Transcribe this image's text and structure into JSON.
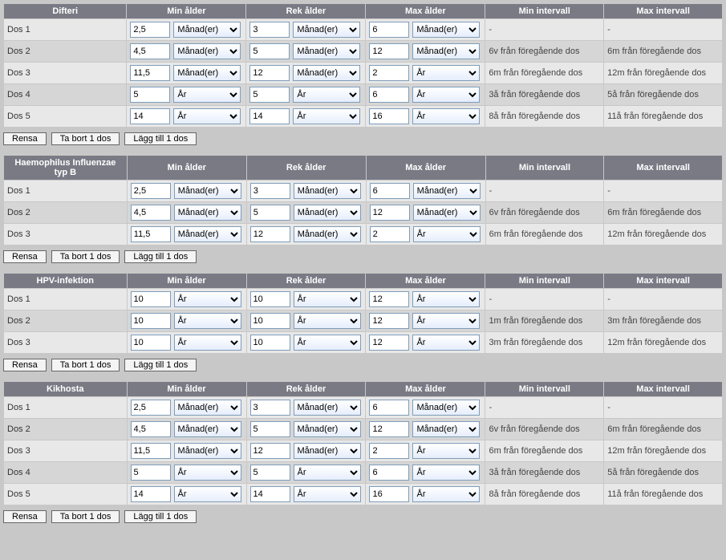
{
  "unitOptions": [
    "Månad(er)",
    "År"
  ],
  "headers": {
    "minAge": "Min ålder",
    "recAge": "Rek ålder",
    "maxAge": "Max ålder",
    "minInt": "Min intervall",
    "maxInt": "Max intervall"
  },
  "buttons": {
    "clear": "Rensa",
    "remove": "Ta bort 1 dos",
    "add": "Lägg till 1 dos"
  },
  "vaccines": [
    {
      "name": "Difteri",
      "doses": [
        {
          "label": "Dos 1",
          "min": {
            "v": "2,5",
            "u": "Månad(er)"
          },
          "rec": {
            "v": "3",
            "u": "Månad(er)"
          },
          "max": {
            "v": "6",
            "u": "Månad(er)"
          },
          "minInt": "-",
          "maxInt": "-"
        },
        {
          "label": "Dos 2",
          "min": {
            "v": "4,5",
            "u": "Månad(er)"
          },
          "rec": {
            "v": "5",
            "u": "Månad(er)"
          },
          "max": {
            "v": "12",
            "u": "Månad(er)"
          },
          "minInt": "6v från föregående dos",
          "maxInt": "6m från föregående dos"
        },
        {
          "label": "Dos 3",
          "min": {
            "v": "11,5",
            "u": "Månad(er)"
          },
          "rec": {
            "v": "12",
            "u": "Månad(er)"
          },
          "max": {
            "v": "2",
            "u": "År"
          },
          "minInt": "6m från föregående dos",
          "maxInt": "12m från föregående dos"
        },
        {
          "label": "Dos 4",
          "min": {
            "v": "5",
            "u": "År"
          },
          "rec": {
            "v": "5",
            "u": "År"
          },
          "max": {
            "v": "6",
            "u": "År"
          },
          "minInt": "3å från föregående dos",
          "maxInt": "5å från föregående dos"
        },
        {
          "label": "Dos 5",
          "min": {
            "v": "14",
            "u": "År"
          },
          "rec": {
            "v": "14",
            "u": "År"
          },
          "max": {
            "v": "16",
            "u": "År"
          },
          "minInt": "8å från föregående dos",
          "maxInt": "11å från föregående dos"
        }
      ]
    },
    {
      "name": "Haemophilus Influenzae typ B",
      "doses": [
        {
          "label": "Dos 1",
          "min": {
            "v": "2,5",
            "u": "Månad(er)"
          },
          "rec": {
            "v": "3",
            "u": "Månad(er)"
          },
          "max": {
            "v": "6",
            "u": "Månad(er)"
          },
          "minInt": "-",
          "maxInt": "-"
        },
        {
          "label": "Dos 2",
          "min": {
            "v": "4,5",
            "u": "Månad(er)"
          },
          "rec": {
            "v": "5",
            "u": "Månad(er)"
          },
          "max": {
            "v": "12",
            "u": "Månad(er)"
          },
          "minInt": "6v från föregående dos",
          "maxInt": "6m från föregående dos"
        },
        {
          "label": "Dos 3",
          "min": {
            "v": "11,5",
            "u": "Månad(er)"
          },
          "rec": {
            "v": "12",
            "u": "Månad(er)"
          },
          "max": {
            "v": "2",
            "u": "År"
          },
          "minInt": "6m från föregående dos",
          "maxInt": "12m från föregående dos"
        }
      ]
    },
    {
      "name": "HPV-infektion",
      "doses": [
        {
          "label": "Dos 1",
          "min": {
            "v": "10",
            "u": "År"
          },
          "rec": {
            "v": "10",
            "u": "År"
          },
          "max": {
            "v": "12",
            "u": "År"
          },
          "minInt": "-",
          "maxInt": "-"
        },
        {
          "label": "Dos 2",
          "min": {
            "v": "10",
            "u": "År"
          },
          "rec": {
            "v": "10",
            "u": "År"
          },
          "max": {
            "v": "12",
            "u": "År"
          },
          "minInt": "1m från föregående dos",
          "maxInt": "3m från föregående dos"
        },
        {
          "label": "Dos 3",
          "min": {
            "v": "10",
            "u": "År"
          },
          "rec": {
            "v": "10",
            "u": "År"
          },
          "max": {
            "v": "12",
            "u": "År"
          },
          "minInt": "3m från föregående dos",
          "maxInt": "12m från föregående dos"
        }
      ]
    },
    {
      "name": "Kikhosta",
      "doses": [
        {
          "label": "Dos 1",
          "min": {
            "v": "2,5",
            "u": "Månad(er)"
          },
          "rec": {
            "v": "3",
            "u": "Månad(er)"
          },
          "max": {
            "v": "6",
            "u": "Månad(er)"
          },
          "minInt": "-",
          "maxInt": "-"
        },
        {
          "label": "Dos 2",
          "min": {
            "v": "4,5",
            "u": "Månad(er)"
          },
          "rec": {
            "v": "5",
            "u": "Månad(er)"
          },
          "max": {
            "v": "12",
            "u": "Månad(er)"
          },
          "minInt": "6v från föregående dos",
          "maxInt": "6m från föregående dos"
        },
        {
          "label": "Dos 3",
          "min": {
            "v": "11,5",
            "u": "Månad(er)"
          },
          "rec": {
            "v": "12",
            "u": "Månad(er)"
          },
          "max": {
            "v": "2",
            "u": "År"
          },
          "minInt": "6m från föregående dos",
          "maxInt": "12m från föregående dos"
        },
        {
          "label": "Dos 4",
          "min": {
            "v": "5",
            "u": "År"
          },
          "rec": {
            "v": "5",
            "u": "År"
          },
          "max": {
            "v": "6",
            "u": "År"
          },
          "minInt": "3å från föregående dos",
          "maxInt": "5å från föregående dos"
        },
        {
          "label": "Dos 5",
          "min": {
            "v": "14",
            "u": "År"
          },
          "rec": {
            "v": "14",
            "u": "År"
          },
          "max": {
            "v": "16",
            "u": "År"
          },
          "minInt": "8å från föregående dos",
          "maxInt": "11å från föregående dos"
        }
      ]
    }
  ]
}
